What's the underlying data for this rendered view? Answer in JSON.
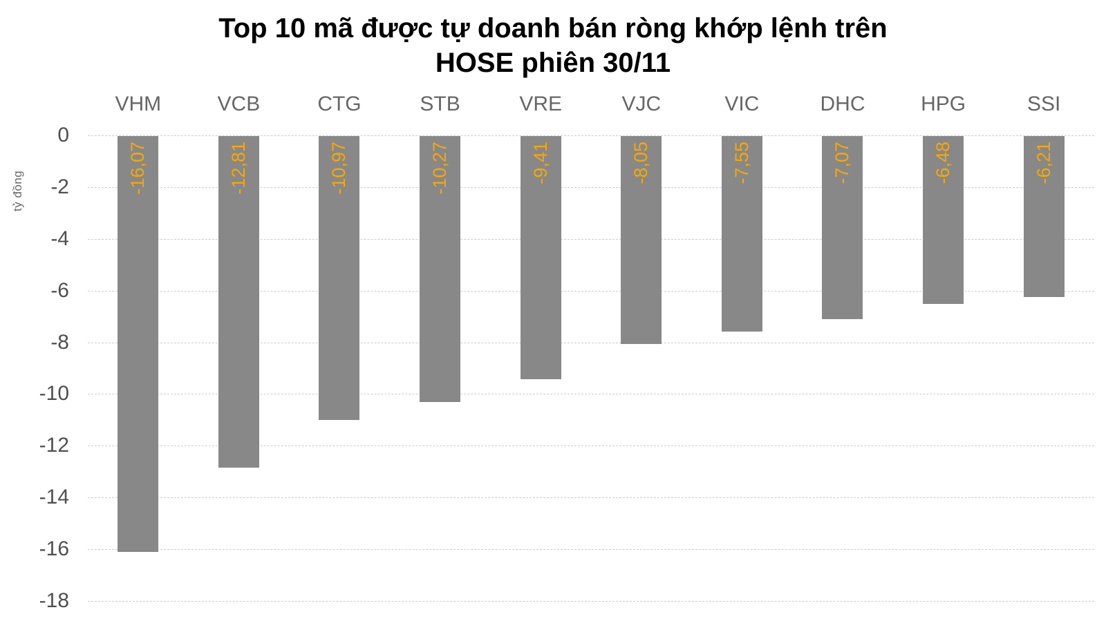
{
  "chart_data": {
    "type": "bar",
    "title": "Top 10 mã được tự doanh bán ròng khớp lệnh trên HOSE phiên 30/11",
    "title_lines": [
      "Top 10 mã được tự doanh bán ròng khớp lệnh trên",
      "HOSE phiên 30/11"
    ],
    "ylabel": "tỷ đồng",
    "categories": [
      "VHM",
      "VCB",
      "CTG",
      "STB",
      "VRE",
      "VJC",
      "VIC",
      "DHC",
      "HPG",
      "SSI"
    ],
    "values": [
      -16.07,
      -12.81,
      -10.97,
      -10.27,
      -9.41,
      -8.05,
      -7.55,
      -7.07,
      -6.48,
      -6.21
    ],
    "value_labels": [
      "-16,07",
      "-12,81",
      "-10,97",
      "-10,27",
      "-9,41",
      "-8,05",
      "-7,55",
      "-7,07",
      "-6,48",
      "-6,21"
    ],
    "y_ticks": [
      "0",
      "-2",
      "-4",
      "-6",
      "-8",
      "-10",
      "-12",
      "-14",
      "-16",
      "-18"
    ],
    "ylim": [
      -18,
      0
    ],
    "grid": "horizontal-dashed",
    "legend": "none",
    "colors": {
      "bar": "#888888",
      "value_label": "#f7a800",
      "title": "#000000",
      "category_label": "#666666",
      "tick_label": "#4f4f4f",
      "gridline": "#cccccc",
      "background": "#ffffff"
    }
  }
}
